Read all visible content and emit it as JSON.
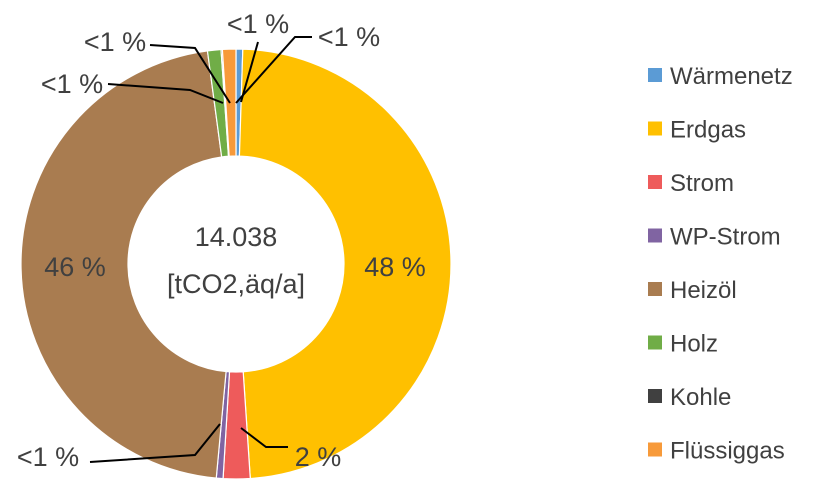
{
  "chart_data": {
    "type": "pie",
    "variant": "donut",
    "center_value": "14.038",
    "center_unit": "[tCO2,äq/a]",
    "slices": [
      {
        "name": "Wärmenetz",
        "value": 0.5,
        "label": "<1 %",
        "color": "#5B9BD5"
      },
      {
        "name": "Erdgas",
        "value": 48,
        "label": "48 %",
        "color": "#FFC000"
      },
      {
        "name": "Strom",
        "value": 2,
        "label": "2 %",
        "color": "#EE5B5B"
      },
      {
        "name": "WP-Strom",
        "value": 0.5,
        "label": "<1 %",
        "color": "#8064A2"
      },
      {
        "name": "Heizöl",
        "value": 46,
        "label": "46 %",
        "color": "#A97C50"
      },
      {
        "name": "Holz",
        "value": 1,
        "label": "<1 %",
        "color": "#70AD47"
      },
      {
        "name": "Kohle",
        "value": 0.1,
        "label": "<1 %",
        "color": "#404040"
      },
      {
        "name": "Flüssiggas",
        "value": 1,
        "label": "<1 %",
        "color": "#F79A3A"
      }
    ],
    "legend_position": "right"
  }
}
